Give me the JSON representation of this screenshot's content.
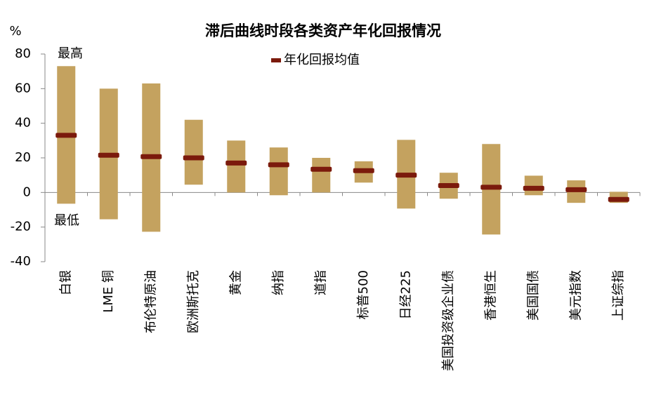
{
  "chart_data": {
    "type": "range",
    "title": "滞后曲线时段各类资产年化回报情况",
    "y_unit": "%",
    "annotations": [
      "最高",
      "最低"
    ],
    "categories": [
      "白银",
      "LME 铜",
      "布伦特原油",
      "欧洲斯托克",
      "黄金",
      "纳指",
      "道指",
      "标普500",
      "日经225",
      "美国投资级企业债",
      "香港恒生",
      "美国国债",
      "美元指数",
      "上证综指"
    ],
    "highs": [
      73,
      60,
      63,
      42,
      30,
      26,
      20,
      18,
      30.4,
      11.4,
      28,
      9.7,
      7,
      0.4
    ],
    "lows": [
      -6.5,
      -15.5,
      -22.7,
      4.5,
      0,
      -1.6,
      0,
      5.7,
      -9.3,
      -3.6,
      -24.3,
      -1.6,
      -6,
      -6
    ],
    "bar_color": "#c4a25f",
    "series": [
      {
        "name": "年化回报均值",
        "color": "#7b1a0c",
        "values": [
          33,
          21.5,
          20.7,
          20,
          17,
          16,
          13.4,
          12.6,
          10,
          4,
          3,
          2.4,
          1.6,
          -4
        ]
      }
    ],
    "ylim": [
      -40,
      80
    ],
    "yticks": [
      -40,
      -20,
      0,
      20,
      40,
      60,
      80
    ]
  }
}
